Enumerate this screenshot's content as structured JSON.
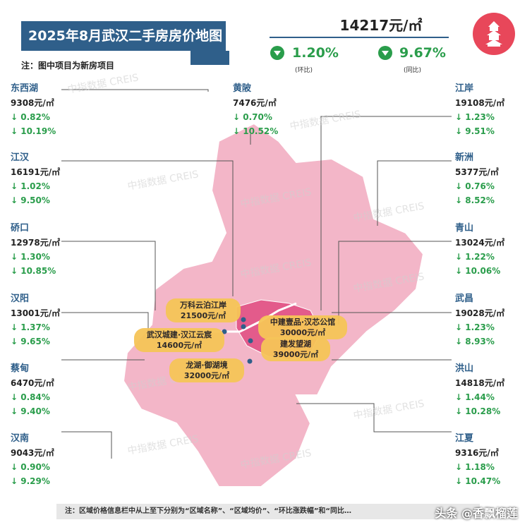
{
  "title": "2025年8月武汉二手房房价地图",
  "note_top": "注：图中项目为新房项目",
  "avg_price": "14217元/㎡",
  "mom": {
    "value": "1.20%",
    "label": "(环比)"
  },
  "yoy": {
    "value": "9.67%",
    "label": "(同比)"
  },
  "colors": {
    "title_bg": "#2f5f8a",
    "district_name": "#2f5f8a",
    "down_green": "#2a9d4b",
    "map_pink": "#f3b6c8",
    "map_core": "#e35b8b",
    "project_bubble": "#f6c558"
  },
  "watermark_text": "中指数据 CREIS",
  "districts_left": [
    {
      "name": "东西湖",
      "price": "9308元/㎡",
      "mom": "↓ 0.82%",
      "yoy": "↓ 10.19%"
    },
    {
      "name": "江汉",
      "price": "16191元/㎡",
      "mom": "↓ 1.02%",
      "yoy": "↓ 9.50%"
    },
    {
      "name": "硚口",
      "price": "12978元/㎡",
      "mom": "↓ 1.30%",
      "yoy": "↓ 10.85%"
    },
    {
      "name": "汉阳",
      "price": "13001元/㎡",
      "mom": "↓ 1.37%",
      "yoy": "↓ 9.65%"
    },
    {
      "name": "蔡甸",
      "price": "6470元/㎡",
      "mom": "↓ 0.84%",
      "yoy": "↓ 9.40%"
    },
    {
      "name": "汉南",
      "price": "9043元/㎡",
      "mom": "↓ 0.90%",
      "yoy": "↓ 9.29%"
    }
  ],
  "district_center": {
    "name": "黄陂",
    "price": "7476元/㎡",
    "mom": "↓ 0.70%",
    "yoy": "↓ 10.52%"
  },
  "districts_right": [
    {
      "name": "江岸",
      "price": "19108元/㎡",
      "mom": "↓ 1.23%",
      "yoy": "↓ 9.51%"
    },
    {
      "name": "新洲",
      "price": "5377元/㎡",
      "mom": "↓ 0.76%",
      "yoy": "↓ 8.52%"
    },
    {
      "name": "青山",
      "price": "13024元/㎡",
      "mom": "↓ 1.22%",
      "yoy": "↓ 10.06%"
    },
    {
      "name": "武昌",
      "price": "19028元/㎡",
      "mom": "↓ 1.23%",
      "yoy": "↓ 8.93%"
    },
    {
      "name": "洪山",
      "price": "14818元/㎡",
      "mom": "↓ 1.44%",
      "yoy": "↓ 10.28%"
    },
    {
      "name": "江夏",
      "price": "9316元/㎡",
      "mom": "↓ 1.18%",
      "yoy": "↓ 10.47%"
    }
  ],
  "projects": [
    {
      "name": "万科云泊江岸",
      "price": "21500元/㎡"
    },
    {
      "name": "武汉城建·汉江云宸",
      "price": "14600元/㎡"
    },
    {
      "name": "龙湖·御湖境",
      "price": "32000元/㎡"
    },
    {
      "name": "中建壹品·汉芯公馆",
      "price": "30000元/㎡"
    },
    {
      "name": "建发望湖",
      "price": "39000元/㎡"
    }
  ],
  "footnote": "注：区域价格信息栏中从上至下分别为“区域名称”、“区域均价”、“环比涨跌幅”和“同比…",
  "source_watermark": "头条 @香飘榴莲"
}
